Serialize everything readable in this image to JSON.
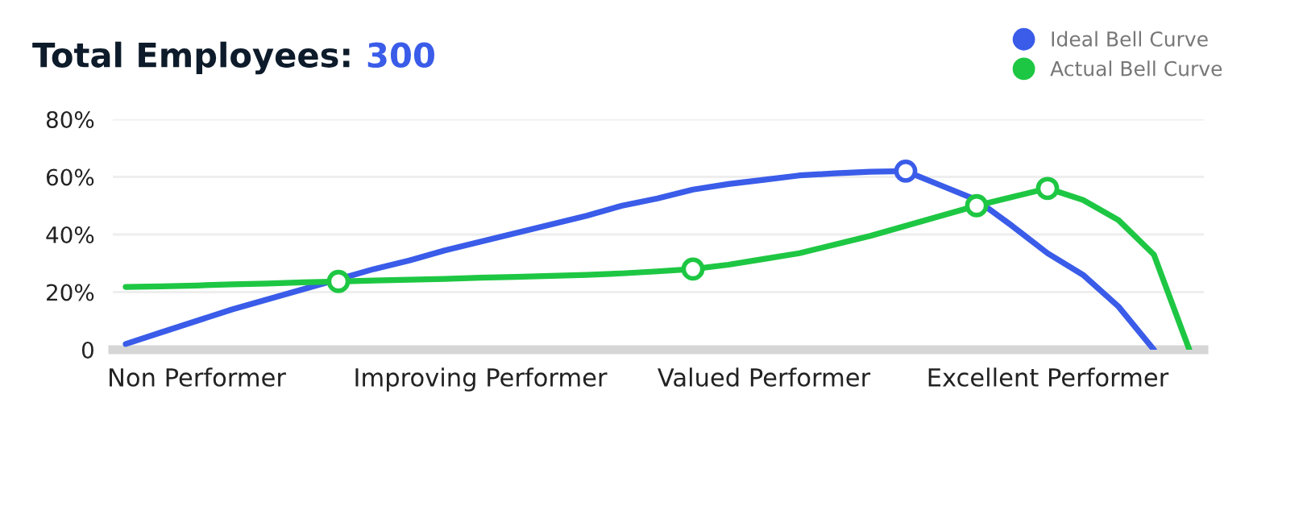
{
  "chart_data": {
    "type": "line",
    "title": "Total Employees: 300",
    "categories": [
      null,
      null,
      "Non Performer",
      null,
      null,
      null,
      null,
      null,
      null,
      null,
      "Improving Performer",
      null,
      null,
      null,
      null,
      null,
      null,
      null,
      "Valued Performer",
      null,
      null,
      null,
      null,
      null,
      null,
      null,
      "Excellent Performer",
      null,
      null,
      null,
      null
    ],
    "ylim": [
      0,
      80
    ],
    "yticks": [
      {
        "value": 0,
        "label": "0"
      },
      {
        "value": 20,
        "label": "20%"
      },
      {
        "value": 40,
        "label": "40%"
      },
      {
        "value": 60,
        "label": "60%"
      },
      {
        "value": 80,
        "label": "80%"
      }
    ],
    "grid": "y",
    "legend": "top right",
    "marker": "none",
    "line_style": "solid",
    "series": [
      {
        "name": "Ideal Bell Curve",
        "color": "#3a5ce9",
        "values": [
          2,
          6,
          10,
          14,
          17.5,
          21,
          24.5,
          28,
          31,
          34.5,
          37.5,
          40.5,
          43.5,
          46.5,
          50,
          52.5,
          55.6,
          57.5,
          59,
          60.5,
          61.2,
          61.8,
          62,
          57,
          52,
          43,
          33.5,
          26,
          15,
          0,
          null
        ]
      },
      {
        "name": "Actual Bell Curve",
        "color": "#1ec743",
        "values": [
          21.8,
          22,
          22.3,
          22.7,
          23,
          23.4,
          23.7,
          24,
          24.3,
          24.6,
          25,
          25.3,
          25.6,
          26,
          26.5,
          27.2,
          28,
          29.5,
          31.5,
          33.5,
          36.5,
          39.5,
          43,
          46.5,
          50,
          53,
          56,
          52,
          45,
          33,
          0
        ]
      },
      {
        "type": "scatter",
        "marker": "circle",
        "color": "#3a5ce9",
        "values": [
          null,
          null,
          null,
          null,
          null,
          null,
          null,
          null,
          null,
          null,
          null,
          null,
          null,
          null,
          null,
          null,
          null,
          null,
          null,
          null,
          null,
          null,
          62,
          null,
          null,
          null,
          null,
          null,
          null,
          null,
          null
        ]
      },
      {
        "type": "scatter",
        "marker": "circle",
        "color": "#1ec743",
        "values": [
          null,
          null,
          null,
          null,
          null,
          null,
          23.7,
          null,
          null,
          null,
          null,
          null,
          null,
          null,
          null,
          null,
          28,
          null,
          null,
          null,
          null,
          null,
          null,
          null,
          50,
          null,
          56,
          null,
          null,
          null,
          null
        ]
      }
    ]
  }
}
